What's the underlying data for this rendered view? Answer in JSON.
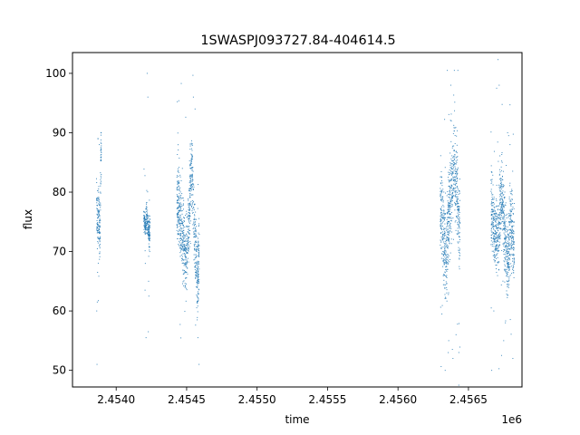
{
  "chart_data": {
    "type": "scatter",
    "title": "1SWASPJ093727.84-404614.5",
    "xlabel": "time",
    "ylabel": "flux",
    "x_offset_label": "1e6",
    "xlim": [
      2453690,
      2456880
    ],
    "ylim": [
      47.2,
      103.5
    ],
    "xticks": [
      2454000,
      2454500,
      2455000,
      2455500,
      2456000,
      2456500
    ],
    "xtick_labels": [
      "2.4540",
      "2.4545",
      "2.4550",
      "2.4555",
      "2.4560",
      "2.4565"
    ],
    "yticks": [
      50,
      60,
      70,
      80,
      90,
      100
    ],
    "ytick_labels": [
      "50",
      "60",
      "70",
      "80",
      "90",
      "100"
    ],
    "grid": false,
    "series_color": "#1f77b4",
    "segments": [
      {
        "x_range": [
          2453860,
          2453895
        ],
        "centers": [
          80,
          75,
          74,
          76,
          78,
          72,
          74,
          86,
          87
        ],
        "spread": 4,
        "outliers": [
          [
            2453862,
            60
          ],
          [
            2453864,
            51
          ],
          [
            2453866,
            61.5
          ],
          [
            2453868,
            66.5
          ],
          [
            2453872,
            89
          ],
          [
            2453880,
            88
          ]
        ]
      },
      {
        "x_range": [
          2454195,
          2454240
        ],
        "centers": [
          77,
          75,
          74,
          76,
          75,
          74,
          73,
          74
        ],
        "spread": 2,
        "outliers": [
          [
            2454205,
            63.5
          ],
          [
            2454212,
            55.5
          ],
          [
            2454220,
            100
          ],
          [
            2454225,
            96
          ],
          [
            2454228,
            56.5
          ],
          [
            2454230,
            65
          ],
          [
            2454232,
            62.5
          ],
          [
            2454238,
            70
          ]
        ]
      },
      {
        "x_range": [
          2454430,
          2454590
        ],
        "centers": [
          79,
          78,
          76,
          73,
          70,
          68,
          72,
          80,
          84,
          76,
          71,
          66,
          70
        ],
        "spread": 6,
        "outliers": [
          [
            2454470,
            84
          ],
          [
            2454548,
            96
          ],
          [
            2454560,
            94
          ],
          [
            2454575,
            58.5
          ],
          [
            2454580,
            55.5
          ],
          [
            2454588,
            51
          ]
        ]
      },
      {
        "x_range": [
          2456300,
          2456440
        ],
        "centers": [
          77,
          76,
          74,
          71,
          68,
          72,
          76,
          78,
          80,
          82,
          84,
          83,
          80,
          76,
          73
        ],
        "spread": 7,
        "outliers": [
          [
            2456335,
            50
          ],
          [
            2456350,
            100.5
          ],
          [
            2456360,
            55
          ],
          [
            2456375,
            98
          ],
          [
            2456390,
            52
          ],
          [
            2456400,
            100.5
          ],
          [
            2456412,
            56
          ],
          [
            2456425,
            100.5
          ],
          [
            2456432,
            53
          ]
        ]
      },
      {
        "x_range": [
          2456660,
          2456825
        ],
        "centers": [
          78,
          76,
          74,
          73,
          72,
          74,
          78,
          80,
          76,
          73,
          70,
          69,
          72,
          74,
          73,
          71
        ],
        "spread": 6,
        "outliers": [
          [
            2456665,
            50
          ],
          [
            2456680,
            60
          ],
          [
            2456700,
            97.5
          ],
          [
            2456718,
            98
          ],
          [
            2456735,
            52.5
          ],
          [
            2456750,
            55
          ],
          [
            2456762,
            58
          ],
          [
            2456778,
            90
          ],
          [
            2456795,
            88
          ],
          [
            2456815,
            52
          ]
        ]
      }
    ]
  }
}
